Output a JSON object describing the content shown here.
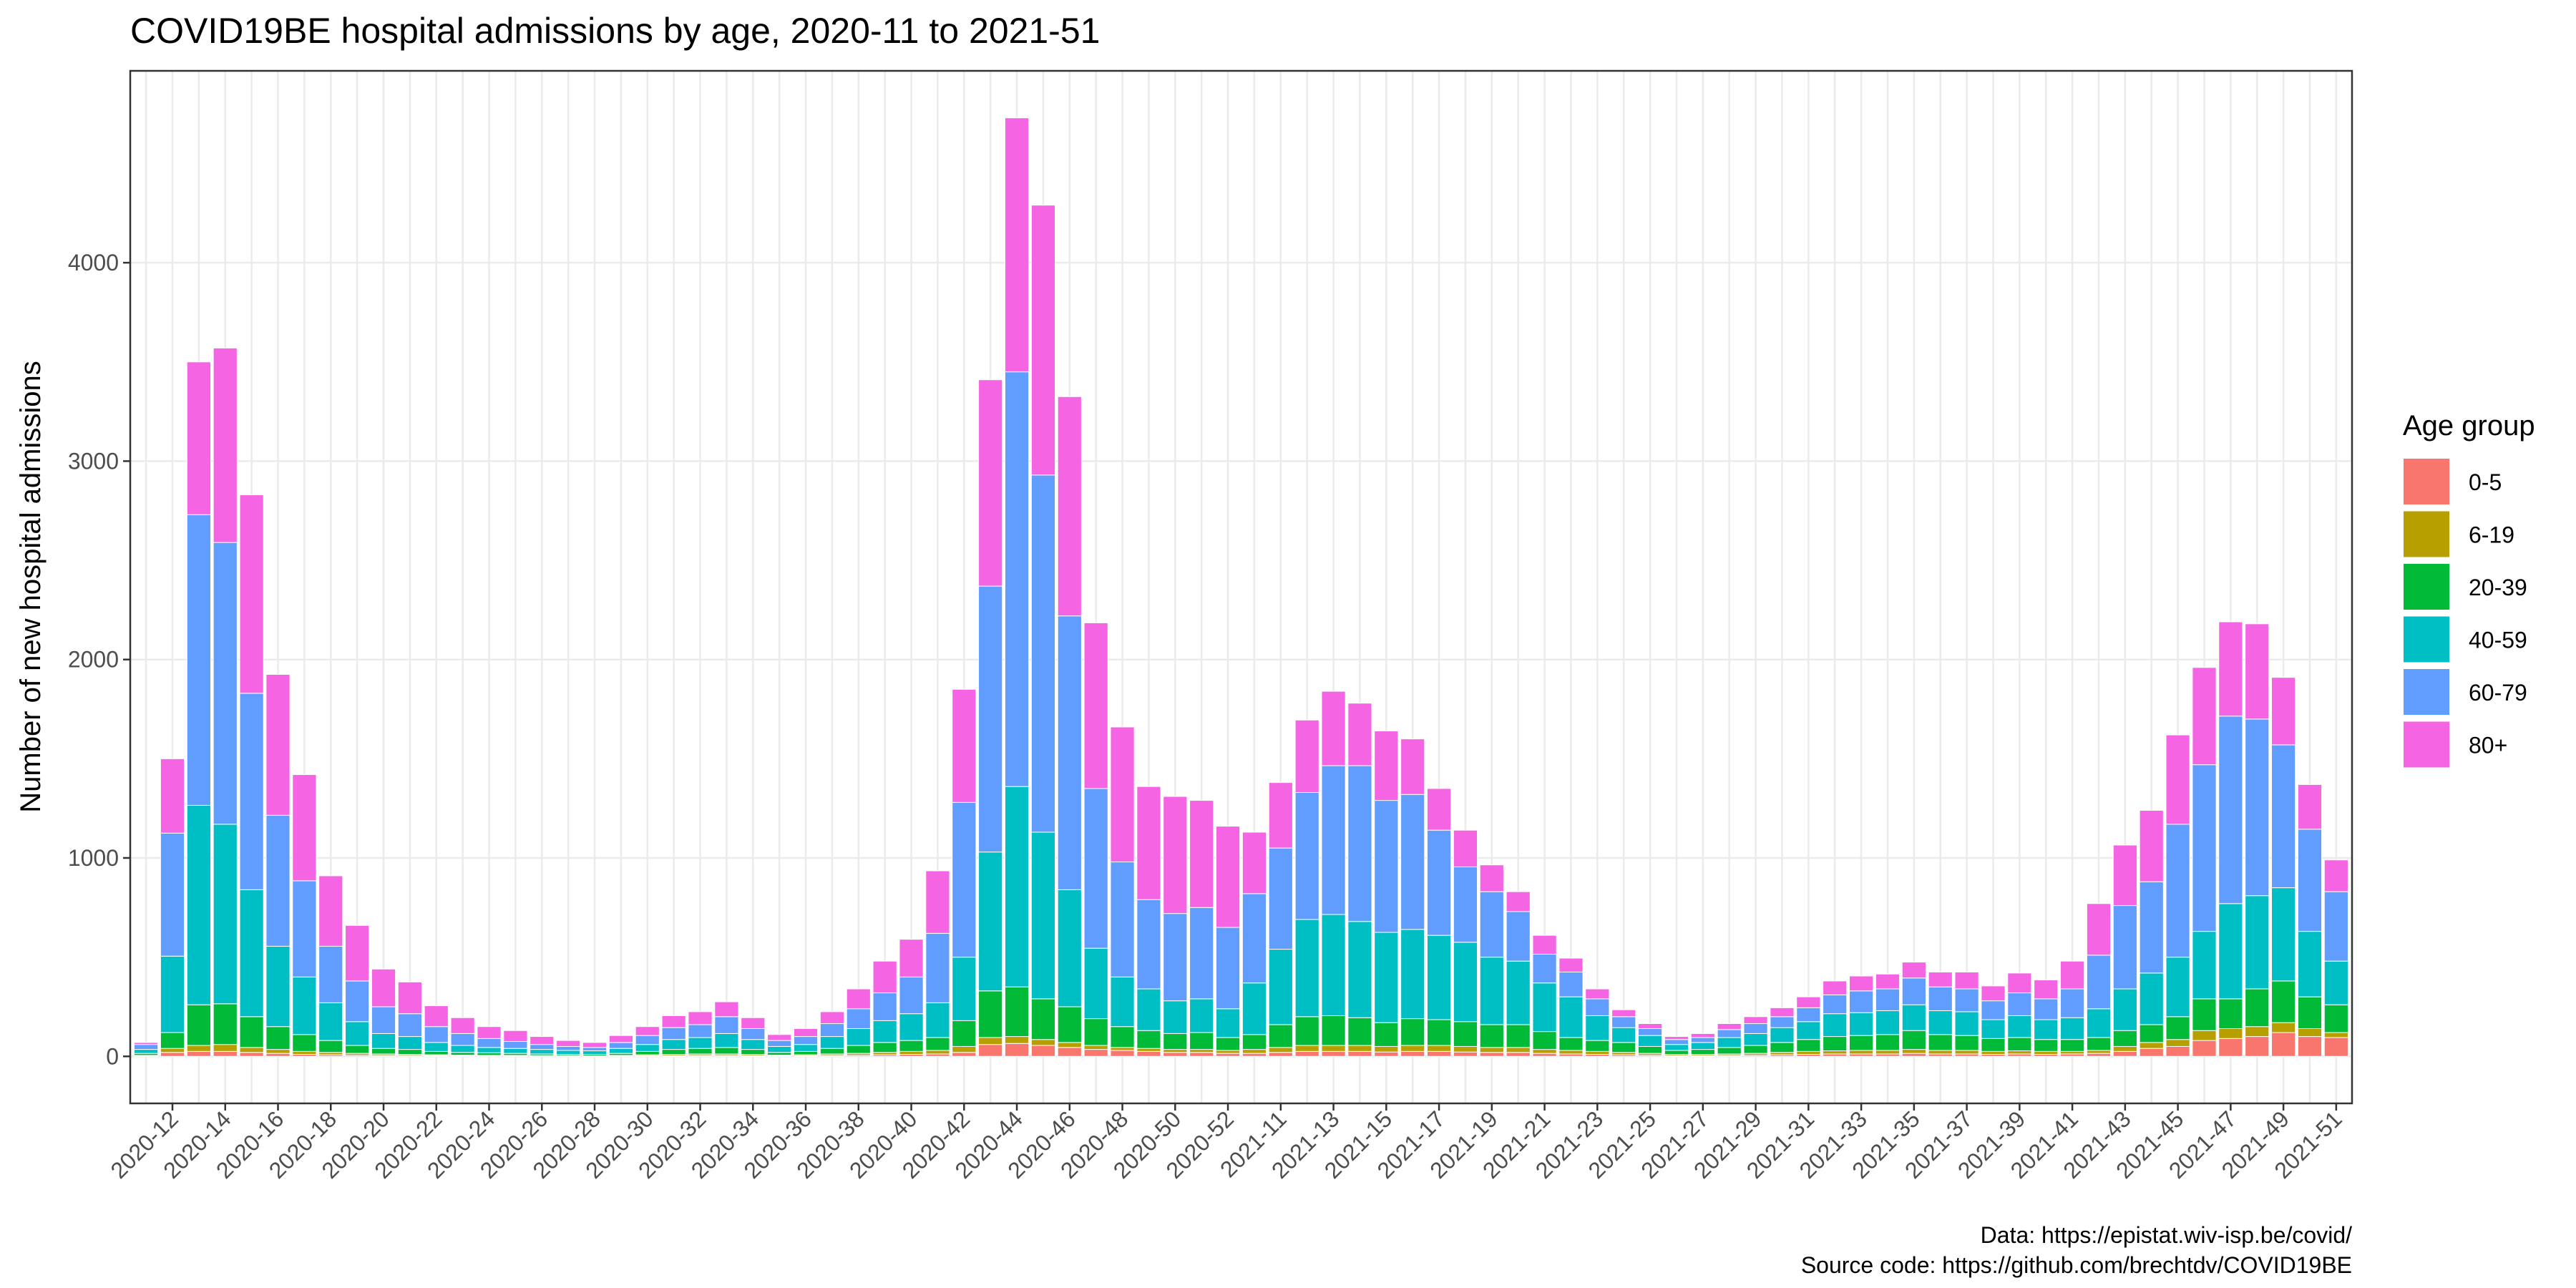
{
  "chart_data": {
    "type": "stacked_bar",
    "title": "COVID19BE hospital admissions by age, 2020-11 to 2021-51",
    "y_label": "Number of new hospital admissions",
    "legend_title": "Age group",
    "legend": "right",
    "grid": true,
    "caption": [
      "Data: https://epistat.wiv-isp.be/covid/",
      "Source code: https://github.com/brechtdv/COVID19BE"
    ],
    "categories": [
      null,
      "2020-12",
      null,
      "2020-14",
      null,
      "2020-16",
      null,
      "2020-18",
      null,
      "2020-20",
      null,
      "2020-22",
      null,
      "2020-24",
      null,
      "2020-26",
      null,
      "2020-28",
      null,
      "2020-30",
      null,
      "2020-32",
      null,
      "2020-34",
      null,
      "2020-36",
      null,
      "2020-38",
      null,
      "2020-40",
      null,
      "2020-42",
      null,
      "2020-44",
      null,
      "2020-46",
      null,
      "2020-48",
      null,
      "2020-50",
      null,
      "2020-52",
      null,
      "2021-11",
      null,
      "2021-13",
      null,
      "2021-15",
      null,
      "2021-17",
      null,
      "2021-19",
      null,
      "2021-21",
      null,
      "2021-23",
      null,
      "2021-25",
      null,
      "2021-27",
      null,
      "2021-29",
      null,
      "2021-31",
      null,
      "2021-33",
      null,
      "2021-35",
      null,
      "2021-37",
      null,
      "2021-39",
      null,
      "2021-41",
      null,
      "2021-43",
      null,
      "2021-45",
      null,
      "2021-47",
      null,
      "2021-49",
      null,
      "2021-51"
    ],
    "series": [
      {
        "name": "0-5",
        "color": "#F8766D",
        "values": [
          2,
          20,
          25,
          25,
          20,
          15,
          10,
          8,
          6,
          5,
          5,
          4,
          3,
          3,
          3,
          2,
          2,
          2,
          2,
          3,
          4,
          5,
          5,
          4,
          3,
          3,
          5,
          6,
          8,
          10,
          12,
          20,
          60,
          65,
          55,
          45,
          35,
          30,
          25,
          20,
          20,
          15,
          15,
          20,
          25,
          25,
          25,
          22,
          25,
          25,
          22,
          20,
          20,
          15,
          12,
          10,
          8,
          6,
          4,
          4,
          5,
          6,
          8,
          10,
          12,
          12,
          12,
          15,
          12,
          12,
          10,
          12,
          10,
          12,
          15,
          25,
          40,
          50,
          80,
          90,
          100,
          120,
          100,
          95
        ]
      },
      {
        "name": "6-19",
        "color": "#B79F00",
        "values": [
          3,
          20,
          30,
          35,
          25,
          20,
          15,
          12,
          9,
          7,
          5,
          4,
          3,
          2,
          2,
          2,
          2,
          1,
          3,
          5,
          6,
          7,
          7,
          6,
          3,
          5,
          7,
          9,
          12,
          15,
          18,
          30,
          35,
          35,
          30,
          25,
          20,
          15,
          15,
          15,
          15,
          15,
          20,
          25,
          30,
          30,
          30,
          28,
          30,
          30,
          28,
          25,
          25,
          20,
          18,
          15,
          12,
          9,
          6,
          6,
          7,
          9,
          12,
          15,
          16,
          18,
          18,
          20,
          18,
          18,
          15,
          16,
          15,
          13,
          15,
          25,
          30,
          35,
          50,
          50,
          50,
          50,
          40,
          25
        ]
      },
      {
        "name": "20-39",
        "color": "#00BA38",
        "values": [
          10,
          80,
          205,
          205,
          155,
          115,
          85,
          60,
          40,
          28,
          25,
          17,
          14,
          13,
          10,
          8,
          6,
          7,
          10,
          17,
          25,
          28,
          33,
          25,
          14,
          17,
          28,
          40,
          50,
          55,
          65,
          130,
          235,
          250,
          205,
          180,
          135,
          105,
          90,
          80,
          85,
          65,
          75,
          115,
          145,
          150,
          140,
          120,
          135,
          130,
          125,
          115,
          115,
          90,
          65,
          55,
          50,
          35,
          20,
          25,
          33,
          40,
          50,
          60,
          72,
          75,
          80,
          95,
          80,
          75,
          65,
          67,
          60,
          60,
          65,
          80,
          90,
          115,
          160,
          150,
          190,
          210,
          160,
          140
        ]
      },
      {
        "name": "40-59",
        "color": "#00BFC4",
        "values": [
          20,
          385,
          1005,
          905,
          640,
          405,
          290,
          190,
          120,
          75,
          65,
          45,
          35,
          27,
          25,
          23,
          20,
          18,
          25,
          35,
          50,
          55,
          70,
          50,
          30,
          35,
          60,
          85,
          110,
          135,
          175,
          320,
          700,
          1010,
          840,
          590,
          355,
          250,
          210,
          165,
          170,
          145,
          260,
          380,
          490,
          510,
          485,
          455,
          450,
          425,
          400,
          340,
          320,
          245,
          205,
          125,
          75,
          55,
          30,
          35,
          50,
          60,
          75,
          90,
          115,
          115,
          120,
          130,
          120,
          120,
          95,
          110,
          100,
          110,
          145,
          210,
          260,
          300,
          340,
          480,
          470,
          470,
          330,
          220
        ]
      },
      {
        "name": "60-79",
        "color": "#619CFF",
        "values": [
          25,
          620,
          1465,
          1420,
          990,
          660,
          485,
          285,
          205,
          135,
          115,
          80,
          60,
          45,
          35,
          25,
          20,
          17,
          30,
          45,
          60,
          65,
          85,
          55,
          30,
          40,
          65,
          100,
          140,
          185,
          350,
          780,
          1340,
          2090,
          1800,
          1380,
          805,
          580,
          450,
          440,
          460,
          410,
          450,
          510,
          640,
          750,
          785,
          665,
          680,
          530,
          380,
          330,
          250,
          145,
          125,
          85,
          55,
          35,
          25,
          25,
          40,
          50,
          55,
          70,
          95,
          110,
          110,
          135,
          120,
          115,
          95,
          115,
          105,
          145,
          270,
          420,
          460,
          670,
          840,
          945,
          890,
          720,
          515,
          350
        ]
      },
      {
        "name": "80+",
        "color": "#F564E3",
        "values": [
          10,
          375,
          770,
          980,
          1000,
          710,
          535,
          355,
          280,
          190,
          160,
          105,
          80,
          60,
          55,
          40,
          30,
          25,
          35,
          45,
          60,
          65,
          75,
          55,
          30,
          40,
          60,
          100,
          160,
          190,
          315,
          570,
          1040,
          1280,
          1360,
          1105,
          835,
          680,
          570,
          590,
          540,
          510,
          310,
          330,
          365,
          375,
          315,
          350,
          280,
          210,
          185,
          135,
          100,
          95,
          70,
          50,
          35,
          25,
          15,
          20,
          30,
          35,
          45,
          55,
          70,
          75,
          75,
          80,
          75,
          85,
          75,
          100,
          95,
          140,
          260,
          305,
          360,
          450,
          490,
          475,
          480,
          340,
          225,
          160
        ]
      }
    ],
    "ylim": [
      -237,
      4967
    ],
    "yticks": [
      0,
      1000,
      2000,
      3000,
      4000
    ]
  }
}
